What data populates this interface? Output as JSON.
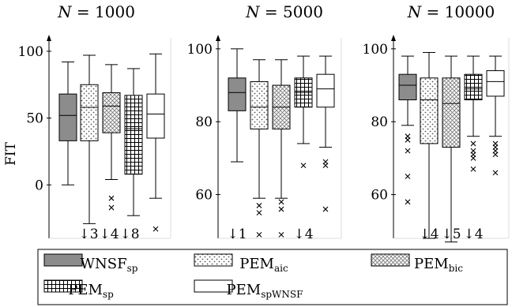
{
  "chart_data": [
    {
      "type": "box",
      "title_var": "N",
      "title_eq": "= 1000",
      "ylabel": "FIT",
      "ylim": [
        -40,
        110
      ],
      "yticks": [
        0,
        50,
        100
      ],
      "boxes": [
        {
          "series": "WNSF_sp",
          "whisker_low": 0,
          "q1": 33,
          "median": 52,
          "q3": 68,
          "whisker_high": 92,
          "outliers": []
        },
        {
          "series": "PEM_aic",
          "whisker_low": -29,
          "q1": 33,
          "median": 58,
          "q3": 75,
          "whisker_high": 97,
          "outliers": []
        },
        {
          "series": "PEM_bic",
          "whisker_low": 4,
          "q1": 39,
          "median": 59,
          "q3": 69,
          "whisker_high": 90,
          "outliers": [
            -10,
            -17
          ]
        },
        {
          "series": "PEM_sp",
          "whisker_low": -23,
          "q1": 8,
          "median": 42,
          "q3": 67,
          "whisker_high": 87,
          "outliers": []
        },
        {
          "series": "PEM_spWNSF",
          "whisker_low": -10,
          "q1": 35,
          "median": 53,
          "q3": 68,
          "whisker_high": 98,
          "outliers": [
            -33
          ]
        }
      ],
      "offscale_notes": [
        "↓3",
        "↓4",
        "↓8"
      ]
    },
    {
      "type": "box",
      "title_var": "N",
      "title_eq": "= 5000",
      "ylim": [
        48,
        103
      ],
      "yticks": [
        60,
        80,
        100
      ],
      "boxes": [
        {
          "series": "WNSF_sp",
          "whisker_low": 69,
          "q1": 83,
          "median": 88,
          "q3": 92,
          "whisker_high": 100,
          "outliers": []
        },
        {
          "series": "PEM_aic",
          "whisker_low": 59,
          "q1": 78,
          "median": 84,
          "q3": 91,
          "whisker_high": 97,
          "outliers": [
            57,
            55,
            49
          ]
        },
        {
          "series": "PEM_bic",
          "whisker_low": 59,
          "q1": 78,
          "median": 84,
          "q3": 90,
          "whisker_high": 97,
          "outliers": [
            58,
            56,
            49
          ]
        },
        {
          "series": "PEM_sp",
          "whisker_low": 74,
          "q1": 84,
          "median": 88,
          "q3": 92,
          "whisker_high": 98,
          "outliers": [
            68
          ]
        },
        {
          "series": "PEM_spWNSF",
          "whisker_low": 73,
          "q1": 84,
          "median": 89,
          "q3": 93,
          "whisker_high": 98,
          "outliers": [
            69,
            68,
            56
          ]
        }
      ],
      "offscale_notes": [
        "↓1",
        "↓4"
      ]
    },
    {
      "type": "box",
      "title_var": "N",
      "title_eq": "= 10000",
      "ylim": [
        48,
        103
      ],
      "yticks": [
        60,
        80,
        100
      ],
      "boxes": [
        {
          "series": "WNSF_sp",
          "whisker_low": 79,
          "q1": 86,
          "median": 90,
          "q3": 93,
          "whisker_high": 98,
          "outliers": [
            76,
            75,
            72,
            65,
            58
          ]
        },
        {
          "series": "PEM_aic",
          "whisker_low": 48,
          "q1": 74,
          "median": 86,
          "q3": 92,
          "whisker_high": 99,
          "outliers": []
        },
        {
          "series": "PEM_bic",
          "whisker_low": 47,
          "q1": 73,
          "median": 85,
          "q3": 92,
          "whisker_high": 98,
          "outliers": []
        },
        {
          "series": "PEM_sp",
          "whisker_low": 76,
          "q1": 86,
          "median": 89,
          "q3": 93,
          "whisker_high": 98,
          "outliers": [
            74,
            72,
            71,
            70,
            67
          ]
        },
        {
          "series": "PEM_spWNSF",
          "whisker_low": 76,
          "q1": 87,
          "median": 91,
          "q3": 94,
          "whisker_high": 98,
          "outliers": [
            74,
            73,
            72,
            71,
            66
          ]
        }
      ],
      "offscale_notes": [
        "↓4",
        "↓5",
        "↓4"
      ]
    }
  ],
  "legend": [
    {
      "base": "WNSF",
      "sub": "sp",
      "pattern": "gray"
    },
    {
      "base": "PEM",
      "sub": "aic",
      "pattern": "dots"
    },
    {
      "base": "PEM",
      "sub": "bic",
      "pattern": "cross"
    },
    {
      "base": "PEM",
      "sub": "sp",
      "pattern": "grid"
    },
    {
      "base": "PEM",
      "sub": "spWNSF",
      "pattern": "white"
    }
  ],
  "colors": {
    "gray_fill": "#8c8c8c",
    "stroke": "#000000",
    "background": "#ffffff"
  }
}
